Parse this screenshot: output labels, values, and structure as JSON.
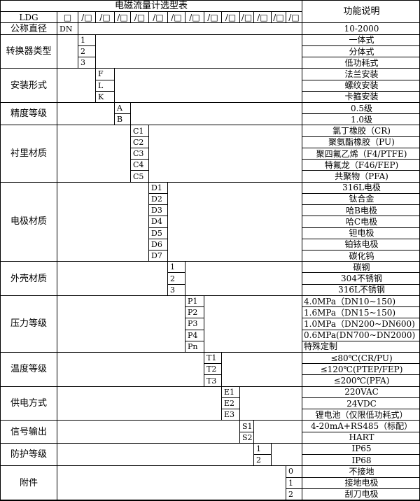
{
  "header": {
    "title": "电磁流量计选型表",
    "function_header": "功能说明",
    "model_label": "LDG",
    "first_box": "□",
    "slot_boxes": [
      "/□",
      "/□",
      "/□",
      "/□",
      "/□",
      "/□",
      "/□",
      "/□",
      "/□",
      "/□",
      "/□",
      "/□",
      "/□"
    ]
  },
  "nominal": {
    "label": "公称直径",
    "code": "DN",
    "desc": "10-2000"
  },
  "sections": [
    {
      "label": "转换器类型",
      "col": 0,
      "items": [
        {
          "code": "1",
          "desc": "一体式"
        },
        {
          "code": "2",
          "desc": "分体式"
        },
        {
          "code": "3",
          "desc": "低功耗式"
        }
      ]
    },
    {
      "label": "安装形式",
      "col": 1,
      "items": [
        {
          "code": "F",
          "desc": "法兰安装"
        },
        {
          "code": "L",
          "desc": "螺纹安装"
        },
        {
          "code": "K",
          "desc": "卡箍安装"
        }
      ]
    },
    {
      "label": "精度等级",
      "col": 2,
      "items": [
        {
          "code": "A",
          "desc": "0.5级"
        },
        {
          "code": "B",
          "desc": "1.0级"
        }
      ]
    },
    {
      "label": "衬里材质",
      "col": 3,
      "items": [
        {
          "code": "C1",
          "desc": "氯丁橡胶（CR)"
        },
        {
          "code": "C2",
          "desc": "聚氨酯橡胶（PU)"
        },
        {
          "code": "C3",
          "desc": "聚四氟乙烯（F4/PTFE)"
        },
        {
          "code": "C4",
          "desc": "特氟龙（F46/FEP)"
        },
        {
          "code": "C5",
          "desc": "共聚物（PFA)"
        }
      ]
    },
    {
      "label": "电极材质",
      "col": 4,
      "items": [
        {
          "code": "D1",
          "desc": "316L电极"
        },
        {
          "code": "D2",
          "desc": "钛合金"
        },
        {
          "code": "D3",
          "desc": "哈B电极"
        },
        {
          "code": "D4",
          "desc": "哈C电极"
        },
        {
          "code": "D5",
          "desc": "钽电极"
        },
        {
          "code": "D6",
          "desc": "铂铱电极"
        },
        {
          "code": "D7",
          "desc": "碳化钨"
        }
      ]
    },
    {
      "label": "外壳材质",
      "col": 5,
      "items": [
        {
          "code": "1",
          "desc": "碳钢"
        },
        {
          "code": "2",
          "desc": "304不锈钢"
        },
        {
          "code": "3",
          "desc": "316L不锈钢"
        }
      ]
    },
    {
      "label": "压力等级",
      "col": 6,
      "items": [
        {
          "code": "P1",
          "desc": "4.0MPa（DN10~150)"
        },
        {
          "code": "P2",
          "desc": "1.6MPa（DN15~150)"
        },
        {
          "code": "P3",
          "desc": "1.0MPa（DN200~DN600)"
        },
        {
          "code": "P4",
          "desc": "0.6MPa(DN700~DN2000)"
        },
        {
          "code": "Pn",
          "desc": "特殊定制"
        }
      ]
    },
    {
      "label": "温度等级",
      "col": 7,
      "items": [
        {
          "code": "T1",
          "desc": "≤80℃(CR/PU)"
        },
        {
          "code": "T2",
          "desc": "≤120℃(PTEP/FEP)"
        },
        {
          "code": "T3",
          "desc": "≤200℃(PFA)"
        }
      ]
    },
    {
      "label": "供电方式",
      "col": 8,
      "items": [
        {
          "code": "E1",
          "desc": "220VAC"
        },
        {
          "code": "E2",
          "desc": "24VDC"
        },
        {
          "code": "E3",
          "desc": "锂电池（仅限低功耗式）"
        }
      ]
    },
    {
      "label": "信号输出",
      "col": 9,
      "items": [
        {
          "code": "S1",
          "desc": "4-20mA+RS485（标配）"
        },
        {
          "code": "S2",
          "desc": "HART"
        }
      ]
    },
    {
      "label": "防护等级",
      "col": 10,
      "items": [
        {
          "code": "1",
          "desc": "IP65"
        },
        {
          "code": "2",
          "desc": "IP68"
        }
      ]
    },
    {
      "label": "附件",
      "col": 12,
      "items": [
        {
          "code": "0",
          "desc": "不接地"
        },
        {
          "code": "1",
          "desc": "接地电极"
        },
        {
          "code": "2",
          "desc": "刮刀电极"
        }
      ]
    }
  ]
}
